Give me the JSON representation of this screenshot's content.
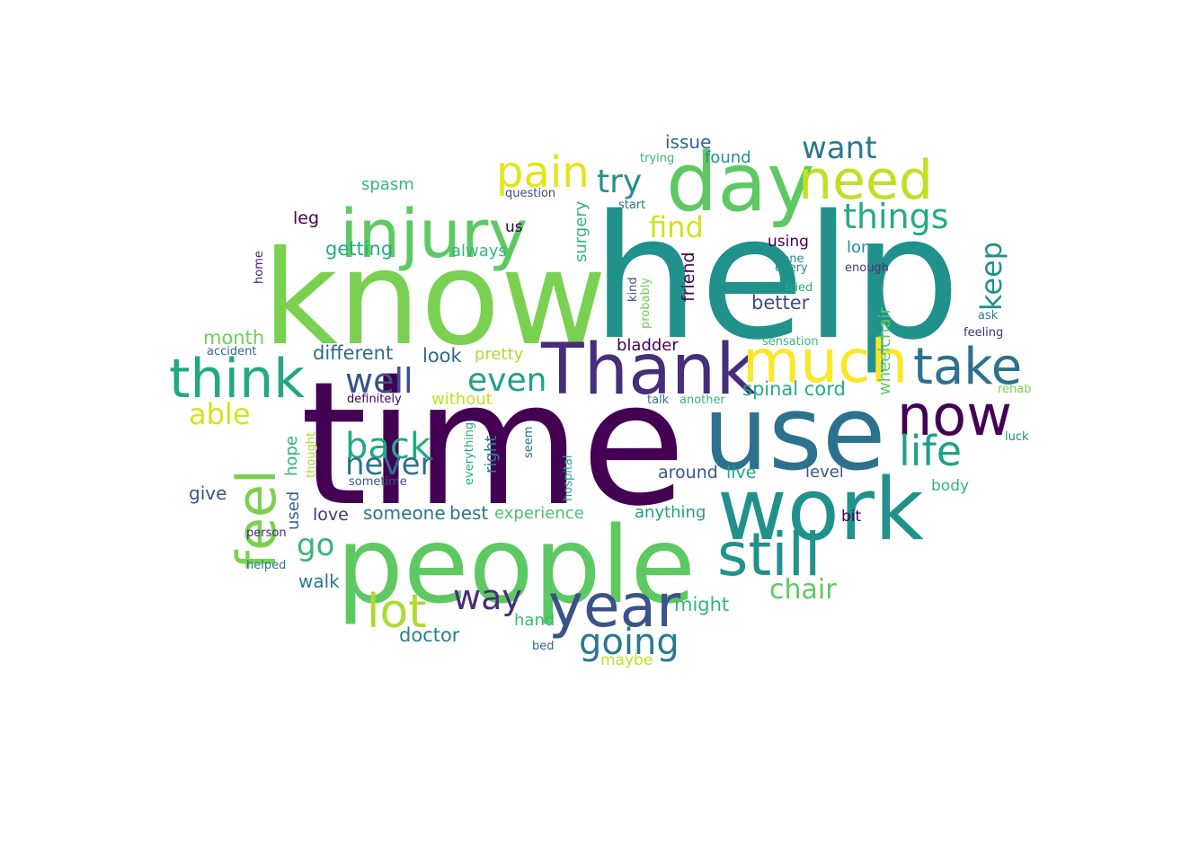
{
  "words": [
    {
      "text": "time",
      "color": "#440154"
    },
    {
      "text": "help",
      "color": "#21918c"
    },
    {
      "text": "know",
      "color": "#7ad151"
    },
    {
      "text": "people",
      "color": "#5ec962"
    },
    {
      "text": "use",
      "color": "#2c728e"
    },
    {
      "text": "work",
      "color": "#21918c"
    },
    {
      "text": "day",
      "color": "#5ec962"
    },
    {
      "text": "Thank",
      "color": "#472d7b"
    },
    {
      "text": "injury",
      "color": "#5ec962"
    },
    {
      "text": "year",
      "color": "#3b528b"
    },
    {
      "text": "still",
      "color": "#21918c"
    },
    {
      "text": "much",
      "color": "#fde725"
    },
    {
      "text": "need",
      "color": "#c2df23"
    },
    {
      "text": "think",
      "color": "#22a884"
    },
    {
      "text": "feel",
      "color": "#7ad151"
    },
    {
      "text": "now",
      "color": "#440154"
    },
    {
      "text": "take",
      "color": "#2c728e"
    },
    {
      "text": "lot",
      "color": "#addc30"
    },
    {
      "text": "life",
      "color": "#1fa187"
    },
    {
      "text": "pain",
      "color": "#e5e419"
    },
    {
      "text": "going",
      "color": "#2a788e"
    },
    {
      "text": "back",
      "color": "#22a884"
    },
    {
      "text": "well",
      "color": "#3b528b"
    },
    {
      "text": "even",
      "color": "#1fa187"
    },
    {
      "text": "things",
      "color": "#25ab82"
    },
    {
      "text": "way",
      "color": "#472d7b"
    },
    {
      "text": "never",
      "color": "#2c728e"
    },
    {
      "text": "want",
      "color": "#2a788e"
    },
    {
      "text": "chair",
      "color": "#5ec962"
    },
    {
      "text": "try",
      "color": "#21918c"
    },
    {
      "text": "go",
      "color": "#35b779"
    },
    {
      "text": "able",
      "color": "#d5e21a"
    },
    {
      "text": "find",
      "color": "#d2e21b"
    },
    {
      "text": "keep",
      "color": "#21918c"
    },
    {
      "text": "spinal cord",
      "color": "#25ab82"
    },
    {
      "text": "different",
      "color": "#31688e"
    },
    {
      "text": "better",
      "color": "#3e4a89"
    },
    {
      "text": "doctor",
      "color": "#26828e"
    },
    {
      "text": "getting",
      "color": "#25ab82"
    },
    {
      "text": "look",
      "color": "#31688e"
    },
    {
      "text": "might",
      "color": "#35b779"
    },
    {
      "text": "wheelchair",
      "color": "#5ec962"
    },
    {
      "text": "month",
      "color": "#6ece58"
    },
    {
      "text": "someone",
      "color": "#2c728e"
    },
    {
      "text": "best",
      "color": "#2c728e"
    },
    {
      "text": "experience",
      "color": "#4ac16d"
    },
    {
      "text": "anything",
      "color": "#1f9e89"
    },
    {
      "text": "around",
      "color": "#39568c"
    },
    {
      "text": "live",
      "color": "#22a884"
    },
    {
      "text": "level",
      "color": "#3b528b"
    },
    {
      "text": "issue",
      "color": "#33638d"
    },
    {
      "text": "give",
      "color": "#3b528b"
    },
    {
      "text": "love",
      "color": "#46327e"
    },
    {
      "text": "walk",
      "color": "#2a788e"
    },
    {
      "text": "hand",
      "color": "#3aba76"
    },
    {
      "text": "pretty",
      "color": "#addc30"
    },
    {
      "text": "without",
      "color": "#c2df23"
    },
    {
      "text": "bladder",
      "color": "#440154"
    },
    {
      "text": "always",
      "color": "#35b779"
    },
    {
      "text": "found",
      "color": "#21918c"
    },
    {
      "text": "long",
      "color": "#21918c"
    },
    {
      "text": "using",
      "color": "#440154"
    },
    {
      "text": "leg",
      "color": "#440154"
    },
    {
      "text": "spasm",
      "color": "#35b779"
    },
    {
      "text": "surgery",
      "color": "#2fb47c"
    },
    {
      "text": "friend",
      "color": "#440154"
    },
    {
      "text": "right",
      "color": "#26828e"
    },
    {
      "text": "body",
      "color": "#35b779"
    },
    {
      "text": "bit",
      "color": "#440154"
    },
    {
      "text": "hope",
      "color": "#2fb47c"
    },
    {
      "text": "used",
      "color": "#33638d"
    },
    {
      "text": "maybe",
      "color": "#c2df23"
    },
    {
      "text": "us",
      "color": "#440154"
    },
    {
      "text": "trying",
      "color": "#35b779"
    },
    {
      "text": "question",
      "color": "#3e4a89"
    },
    {
      "text": "start",
      "color": "#2a788e"
    },
    {
      "text": "kind",
      "color": "#3b528b"
    },
    {
      "text": "probably",
      "color": "#6ece58"
    },
    {
      "text": "done",
      "color": "#21918c"
    },
    {
      "text": "every",
      "color": "#21918c"
    },
    {
      "text": "tried",
      "color": "#25ab82"
    },
    {
      "text": "enough",
      "color": "#46327e"
    },
    {
      "text": "ask",
      "color": "#2a788e"
    },
    {
      "text": "feeling",
      "color": "#472d7b"
    },
    {
      "text": "sensation",
      "color": "#35b779"
    },
    {
      "text": "rehab",
      "color": "#7ad151"
    },
    {
      "text": "luck",
      "color": "#26828e"
    },
    {
      "text": "talk",
      "color": "#2c728e"
    },
    {
      "text": "another",
      "color": "#35b779"
    },
    {
      "text": "definitely",
      "color": "#440154"
    },
    {
      "text": "accident",
      "color": "#31688e"
    },
    {
      "text": "home",
      "color": "#482878"
    },
    {
      "text": "thought",
      "color": "#addc30"
    },
    {
      "text": "everything",
      "color": "#25ab82"
    },
    {
      "text": "seem",
      "color": "#2c728e"
    },
    {
      "text": "hospital",
      "color": "#22a884"
    },
    {
      "text": "sometime",
      "color": "#3b528b"
    },
    {
      "text": "person",
      "color": "#482878"
    },
    {
      "text": "helped",
      "color": "#2a788e"
    },
    {
      "text": "bed",
      "color": "#31688e"
    }
  ]
}
